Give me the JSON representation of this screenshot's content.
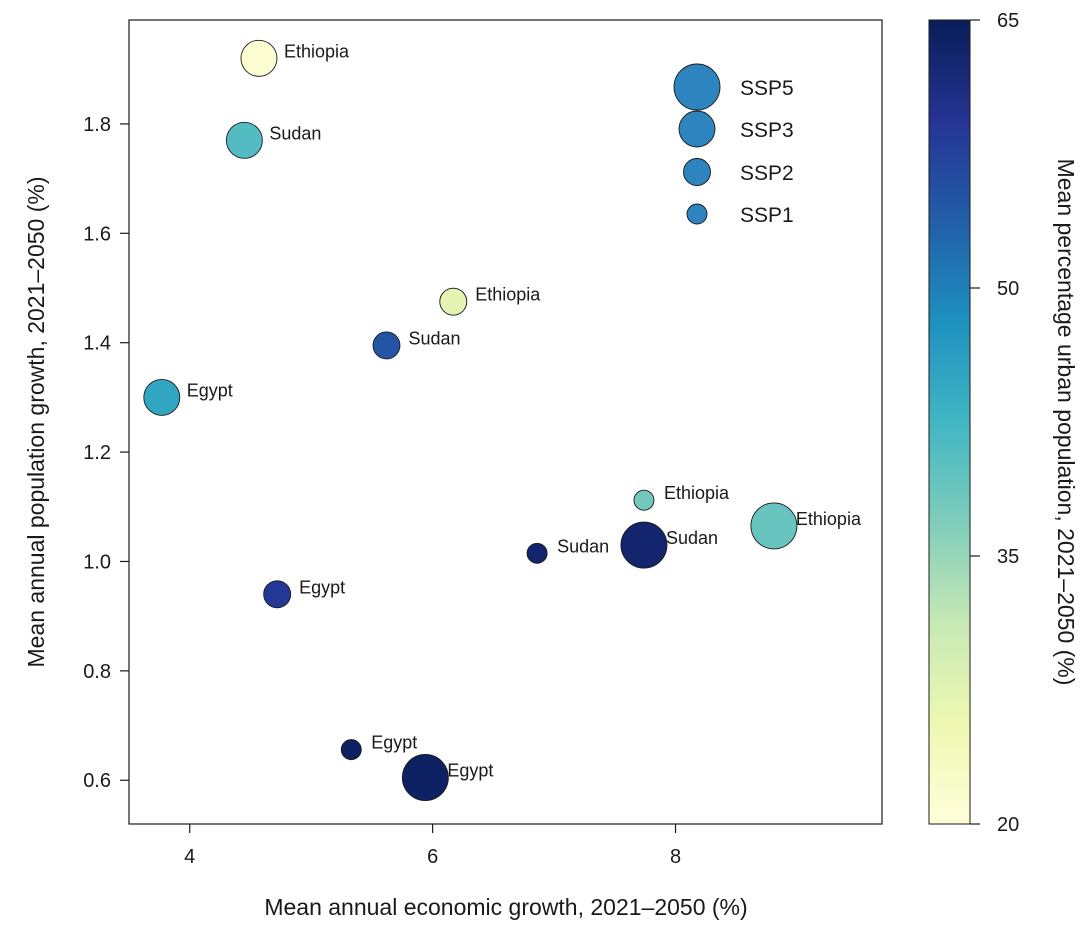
{
  "chart_data": {
    "type": "scatter",
    "xlabel": "Mean annual economic growth, 2021–2050 (%)",
    "ylabel": "Mean annual population growth, 2021–2050 (%)",
    "xlim": [
      3.5,
      9.7
    ],
    "ylim": [
      0.52,
      1.99
    ],
    "x_ticks": [
      4,
      6,
      8
    ],
    "x_tick_labels": [
      "4",
      "6",
      "8"
    ],
    "y_ticks": [
      0.6,
      0.8,
      1.0,
      1.2,
      1.4,
      1.6,
      1.8
    ],
    "y_tick_labels": [
      "0.6",
      "0.8",
      "1.0",
      "1.2",
      "1.4",
      "1.6",
      "1.8"
    ],
    "size_legend": [
      {
        "label": "SSP5",
        "scenario": "SSP5"
      },
      {
        "label": "SSP3",
        "scenario": "SSP3"
      },
      {
        "label": "SSP2",
        "scenario": "SSP2"
      },
      {
        "label": "SSP1",
        "scenario": "SSP1"
      }
    ],
    "colorbar": {
      "title": "Mean percentage urban population, 2021–2050 (%)",
      "min": 20,
      "max": 65,
      "ticks": [
        20,
        35,
        50,
        65
      ],
      "tick_labels": [
        "20",
        "35",
        "50",
        "65"
      ],
      "colors": [
        "#ffffd9",
        "#edf8b1",
        "#c7e9b4",
        "#7fcdbb",
        "#41b6c4",
        "#1d91c0",
        "#225ea8",
        "#253494",
        "#081d58"
      ]
    },
    "points": [
      {
        "country": "Ethiopia",
        "scenario": "SSP3",
        "x": 4.57,
        "y": 1.92,
        "urban": 21
      },
      {
        "country": "Sudan",
        "scenario": "SSP3",
        "x": 4.45,
        "y": 1.77,
        "urban": 41
      },
      {
        "country": "Ethiopia",
        "scenario": "SSP2",
        "x": 6.17,
        "y": 1.475,
        "urban": 27
      },
      {
        "country": "Sudan",
        "scenario": "SSP2",
        "x": 5.62,
        "y": 1.395,
        "urban": 55
      },
      {
        "country": "Egypt",
        "scenario": "SSP3",
        "x": 3.77,
        "y": 1.3,
        "urban": 45
      },
      {
        "country": "Ethiopia",
        "scenario": "SSP1",
        "x": 7.74,
        "y": 1.112,
        "urban": 38
      },
      {
        "country": "Ethiopia",
        "scenario": "SSP5",
        "x": 8.81,
        "y": 1.065,
        "urban": 39
      },
      {
        "country": "Sudan",
        "scenario": "SSP1",
        "x": 6.86,
        "y": 1.015,
        "urban": 63
      },
      {
        "country": "Sudan",
        "scenario": "SSP5",
        "x": 7.74,
        "y": 1.03,
        "urban": 63
      },
      {
        "country": "Egypt",
        "scenario": "SSP2",
        "x": 4.72,
        "y": 0.94,
        "urban": 59
      },
      {
        "country": "Egypt",
        "scenario": "SSP1",
        "x": 5.33,
        "y": 0.656,
        "urban": 64
      },
      {
        "country": "Egypt",
        "scenario": "SSP5",
        "x": 5.94,
        "y": 0.605,
        "urban": 64
      }
    ]
  }
}
